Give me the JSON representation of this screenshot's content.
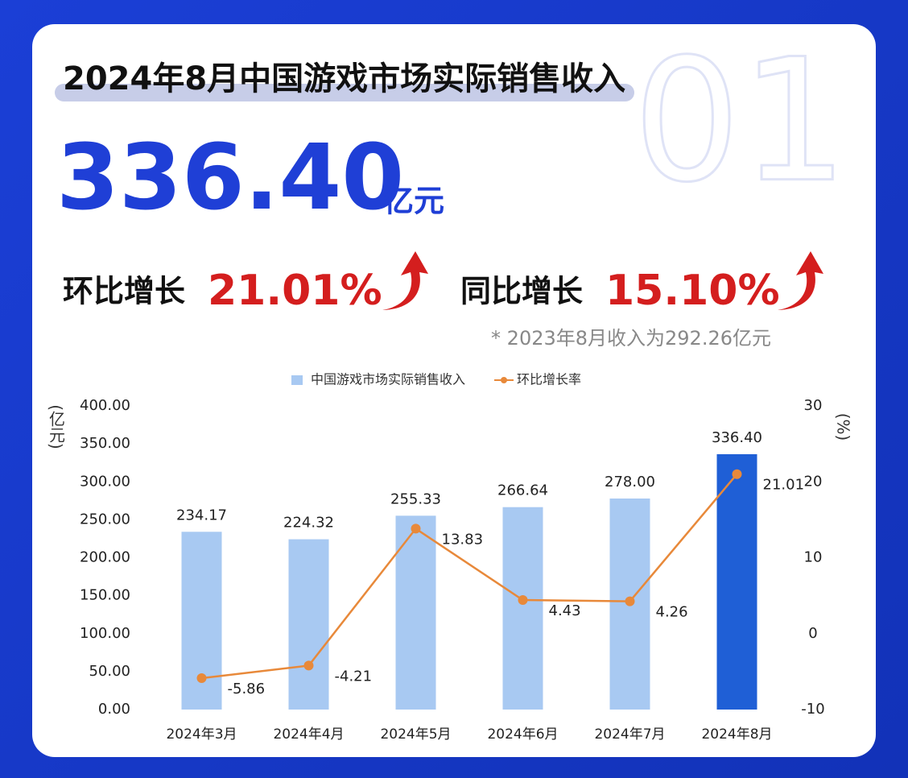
{
  "header": {
    "title": "2024年8月中国游戏市场实际销售收入",
    "watermark": "01",
    "big_number": "336.40",
    "unit": "亿元",
    "mom_label": "环比增长",
    "mom_value": "21.01%",
    "yoy_label": "同比增长",
    "yoy_value": "15.10%",
    "note": "* 2023年8月收入为292.26亿元"
  },
  "chart_data": {
    "type": "combo",
    "categories": [
      "2024年3月",
      "2024年4月",
      "2024年5月",
      "2024年6月",
      "2024年7月",
      "2024年8月"
    ],
    "series": [
      {
        "name": "中国游戏市场实际销售收入",
        "type": "bar",
        "color": "#a8c9f2",
        "colors": [
          "#a8c9f2",
          "#a8c9f2",
          "#a8c9f2",
          "#a8c9f2",
          "#a8c9f2",
          "#1f5fd6"
        ],
        "values": [
          234.17,
          224.32,
          255.33,
          266.64,
          278.0,
          336.4
        ],
        "value_labels": [
          "234.17",
          "224.32",
          "255.33",
          "266.64",
          "278.00",
          "336.40"
        ]
      },
      {
        "name": "环比增长率",
        "type": "line",
        "axis": "y2",
        "color": "#e8893a",
        "values": [
          -5.86,
          -4.21,
          13.83,
          4.43,
          4.26,
          21.01
        ]
      }
    ],
    "ylabel": "(亿元)",
    "y2label": "(%)",
    "ylim": [
      0,
      400
    ],
    "yticks": [
      {
        "value": 0,
        "label": "0.00"
      },
      {
        "value": 50,
        "label": "50.00"
      },
      {
        "value": 100,
        "label": "100.00"
      },
      {
        "value": 150,
        "label": "150.00"
      },
      {
        "value": 200,
        "label": "200.00"
      },
      {
        "value": 250,
        "label": "250.00"
      },
      {
        "value": 300,
        "label": "300.00"
      },
      {
        "value": 350,
        "label": "350.00"
      },
      {
        "value": 400,
        "label": "400.00"
      }
    ],
    "y2lim": [
      -10,
      30
    ],
    "y2ticks": [
      -10,
      0,
      10,
      20,
      30
    ],
    "grid": false
  }
}
